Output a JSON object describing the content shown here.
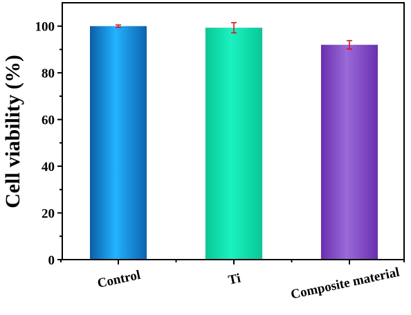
{
  "chart_data": {
    "type": "bar",
    "title": "",
    "xlabel": "",
    "ylabel": "Cell viability (%)",
    "ylim": [
      0,
      110
    ],
    "yticks": [
      0,
      20,
      40,
      60,
      80,
      100
    ],
    "yticks_labels": [
      "0",
      "20",
      "40",
      "60",
      "80",
      "100"
    ],
    "categories": [
      "Control",
      "Ti",
      "Composite material"
    ],
    "values": [
      100,
      99.3,
      92
    ],
    "errors": [
      0.5,
      2.2,
      1.8
    ],
    "colors": [
      "#1a9bd9",
      "#12e4b0",
      "#7a4bc2"
    ],
    "error_color": "#ff0000",
    "grid": false,
    "legend": "none"
  }
}
